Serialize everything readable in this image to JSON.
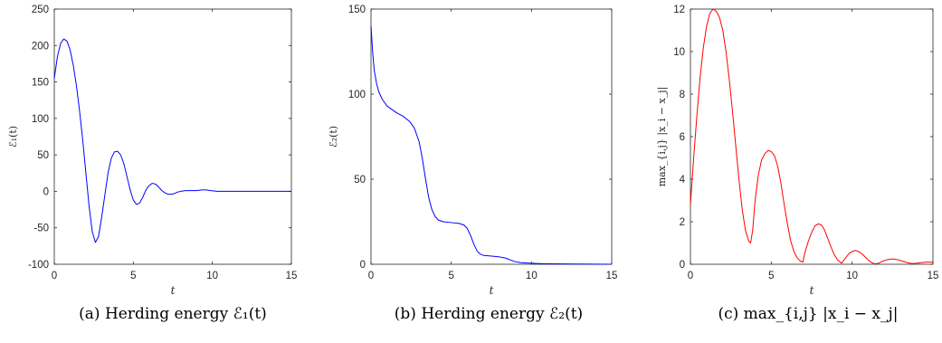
{
  "chart_data": [
    {
      "type": "line",
      "caption": "(a) Herding energy ℰ₁(t)",
      "xlabel": "t",
      "ylabel": "ℰ₁(t)",
      "xlim": [
        0,
        15
      ],
      "ylim": [
        -100,
        250
      ],
      "xticks": [
        0,
        5,
        10,
        15
      ],
      "yticks": [
        -100,
        -50,
        0,
        50,
        100,
        150,
        200,
        250
      ],
      "grid": false,
      "color": "#0000ff",
      "x": [
        0,
        0.2,
        0.4,
        0.6,
        0.8,
        1.0,
        1.2,
        1.4,
        1.6,
        1.8,
        2.0,
        2.2,
        2.4,
        2.6,
        2.8,
        3.0,
        3.2,
        3.4,
        3.6,
        3.8,
        4.0,
        4.2,
        4.4,
        4.6,
        4.8,
        5.0,
        5.2,
        5.4,
        5.6,
        5.8,
        6.0,
        6.2,
        6.4,
        6.6,
        6.8,
        7.0,
        7.2,
        7.4,
        7.6,
        7.8,
        8.0,
        8.3,
        8.6,
        9.0,
        9.3,
        9.6,
        9.9,
        10.3,
        10.8,
        11.5,
        12.5,
        13.5,
        15.0
      ],
      "y": [
        155,
        185,
        203,
        209,
        206,
        194,
        173,
        145,
        110,
        70,
        25,
        -20,
        -55,
        -70,
        -62,
        -35,
        -5,
        25,
        45,
        54,
        55,
        50,
        38,
        20,
        2,
        -12,
        -18,
        -16,
        -8,
        2,
        8,
        11,
        10,
        6,
        1,
        -2,
        -4,
        -4,
        -3,
        -1,
        0,
        1,
        1,
        1,
        2,
        2,
        1,
        0,
        0,
        0,
        0,
        0,
        0
      ]
    },
    {
      "type": "line",
      "caption": "(b) Herding energy ℰ₂(t)",
      "xlabel": "t",
      "ylabel": "ℰ₂(t)",
      "xlim": [
        0,
        15
      ],
      "ylim": [
        0,
        150
      ],
      "xticks": [
        0,
        5,
        10,
        15
      ],
      "yticks": [
        0,
        50,
        100,
        150
      ],
      "grid": false,
      "color": "#0000ff",
      "x": [
        0,
        0.1,
        0.2,
        0.35,
        0.5,
        0.7,
        1.0,
        1.3,
        1.6,
        2.0,
        2.4,
        2.7,
        3.0,
        3.2,
        3.4,
        3.6,
        3.8,
        4.0,
        4.2,
        4.5,
        5.0,
        5.5,
        5.8,
        6.0,
        6.2,
        6.4,
        6.6,
        6.8,
        7.0,
        7.3,
        7.6,
        8.0,
        8.4,
        8.7,
        9.0,
        9.3,
        9.6,
        10.0,
        10.5,
        11.0,
        12.0,
        13.0,
        14.0,
        15.0
      ],
      "y": [
        140,
        125,
        114,
        106,
        101,
        97,
        93,
        91,
        89,
        87,
        84,
        80,
        72,
        62,
        50,
        39,
        32,
        28,
        26,
        25,
        24.5,
        24,
        23,
        21,
        17,
        12,
        8,
        6,
        5.2,
        5,
        4.7,
        4.3,
        3.6,
        2.5,
        1.5,
        1,
        0.8,
        0.6,
        0.4,
        0.3,
        0.2,
        0.1,
        0.05,
        0
      ]
    },
    {
      "type": "line",
      "caption": "(c) max_{i,j} |x_i − x_j|",
      "xlabel": "t",
      "ylabel": "max_{i,j} |x_i − x_j|",
      "xlim": [
        0,
        15
      ],
      "ylim": [
        0,
        12
      ],
      "xticks": [
        0,
        5,
        10,
        15
      ],
      "yticks": [
        0,
        2,
        4,
        6,
        8,
        10,
        12
      ],
      "grid": false,
      "color": "#ff0000",
      "x": [
        0,
        0.2,
        0.4,
        0.6,
        0.8,
        1.0,
        1.2,
        1.4,
        1.6,
        1.8,
        2.0,
        2.2,
        2.4,
        2.6,
        2.8,
        3.0,
        3.2,
        3.4,
        3.6,
        3.72,
        3.85,
        4.0,
        4.2,
        4.4,
        4.6,
        4.8,
        5.0,
        5.2,
        5.4,
        5.6,
        5.8,
        6.0,
        6.2,
        6.4,
        6.6,
        6.8,
        6.95,
        7.1,
        7.3,
        7.5,
        7.7,
        7.9,
        8.1,
        8.3,
        8.5,
        8.7,
        8.9,
        9.1,
        9.35,
        9.6,
        9.8,
        10.0,
        10.2,
        10.4,
        10.6,
        10.8,
        11.0,
        11.2,
        11.4,
        11.65,
        11.9,
        12.2,
        12.5,
        12.8,
        13.1,
        13.4,
        13.7,
        14.0,
        14.3,
        14.6,
        15.0
      ],
      "y": [
        2.8,
        5.0,
        7.0,
        8.8,
        10.2,
        11.2,
        11.8,
        12.0,
        11.9,
        11.6,
        11.0,
        10.0,
        8.7,
        7.2,
        5.6,
        4.0,
        2.6,
        1.6,
        1.1,
        1.0,
        1.6,
        3.0,
        4.2,
        4.9,
        5.2,
        5.35,
        5.3,
        5.1,
        4.6,
        3.8,
        2.8,
        1.9,
        1.1,
        0.6,
        0.3,
        0.15,
        0.1,
        0.6,
        1.1,
        1.5,
        1.8,
        1.9,
        1.85,
        1.6,
        1.2,
        0.8,
        0.45,
        0.2,
        0.05,
        0.3,
        0.5,
        0.6,
        0.65,
        0.6,
        0.5,
        0.35,
        0.2,
        0.08,
        0.02,
        0.05,
        0.15,
        0.22,
        0.25,
        0.22,
        0.15,
        0.08,
        0.03,
        0.05,
        0.08,
        0.1,
        0.1
      ]
    }
  ]
}
